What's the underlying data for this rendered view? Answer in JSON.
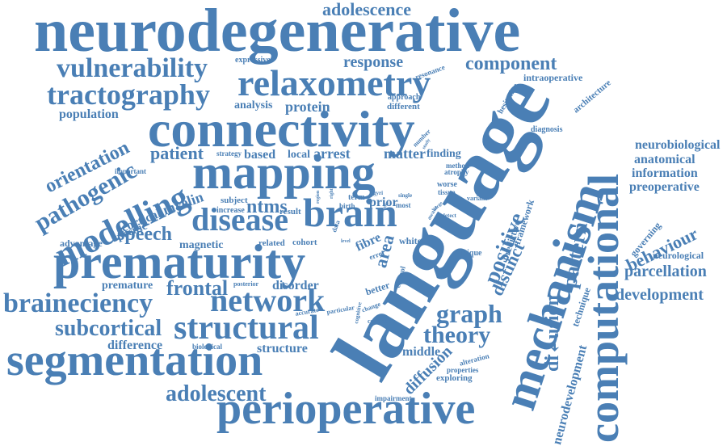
{
  "cloud": {
    "color": "#4a7fb5",
    "words": [
      "neurodegenerative",
      "language",
      "connectivity",
      "mapping",
      "prematurity",
      "mechanism",
      "computational",
      "segmentation",
      "perioperative",
      "relaxometry",
      "structural",
      "brain",
      "network",
      "disease",
      "modelling",
      "tractography",
      "vulnerability",
      "braineciency",
      "pathogenic",
      "orientation",
      "subcortical",
      "graph",
      "theory",
      "frontal",
      "speech",
      "adolescent",
      "adolescence",
      "component",
      "response",
      "positive",
      "distinct",
      "pattern",
      "parcellation",
      "development",
      "neurobiological",
      "anatomical",
      "information",
      "preoperative",
      "behaviour",
      "neurological",
      "governing",
      "di↲usion",
      "diffusion",
      "neurodevelopment",
      "technique",
      "framework",
      "predictive",
      "difference",
      "structure",
      "myelin",
      "cortical",
      "specific",
      "patient",
      "arrest",
      "matter",
      "protein",
      "analysis",
      "population",
      "based",
      "local",
      "prior",
      "finding",
      "area",
      "fibre",
      "white",
      "disorder",
      "premature",
      "magnetic",
      "related",
      "cohort",
      "advantage",
      "ntms",
      "subject",
      "increase",
      "result",
      "strategy",
      "important",
      "expressive",
      "intraoperative",
      "architecture",
      "hesitation",
      "diagnosis",
      "approach",
      "different",
      "resonance",
      "number",
      "method",
      "atrophy",
      "worse",
      "tissue",
      "variant",
      "term",
      "birth",
      "most",
      "single",
      "data",
      "error",
      "control",
      "better",
      "posterior",
      "accurate",
      "particular",
      "cognitive",
      "change",
      "common",
      "middle",
      "alteration",
      "properties",
      "exploring",
      "impairment",
      "unique",
      "biological",
      "detect",
      "awake",
      "region",
      "level",
      "gyri",
      "whole",
      "right",
      "study",
      "large"
    ]
  }
}
